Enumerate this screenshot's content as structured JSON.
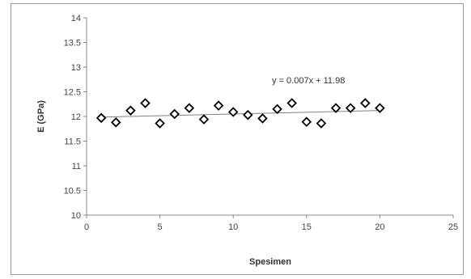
{
  "chart_data": {
    "type": "scatter",
    "title": "",
    "xlabel": "Spesimen",
    "ylabel": "E (GPa)",
    "xlim": [
      0,
      25
    ],
    "ylim": [
      10,
      14
    ],
    "xticks": [
      "0",
      "5",
      "10",
      "15",
      "20",
      "25"
    ],
    "yticks": [
      "10",
      "10.5",
      "11",
      "11.5",
      "12",
      "12.5",
      "13",
      "13.5",
      "14"
    ],
    "grid": false,
    "marker": "diamond",
    "series": [
      {
        "x": [
          1,
          2,
          3,
          4,
          5,
          6,
          7,
          8,
          9,
          10,
          11,
          12,
          13,
          14,
          15,
          16,
          17,
          18,
          19,
          20
        ],
        "y": [
          11.97,
          11.88,
          12.12,
          12.27,
          11.86,
          12.05,
          12.17,
          11.94,
          12.22,
          12.09,
          12.03,
          11.96,
          12.15,
          12.27,
          11.89,
          11.86,
          12.17,
          12.17,
          12.27,
          12.17
        ],
        "color": "#000000"
      }
    ],
    "trendline": {
      "type": "linear",
      "slope": 0.007,
      "intercept": 11.98,
      "x_range": [
        1,
        20
      ],
      "equation_label": "y = 0.007x + 11.98",
      "color": "#808080"
    }
  }
}
